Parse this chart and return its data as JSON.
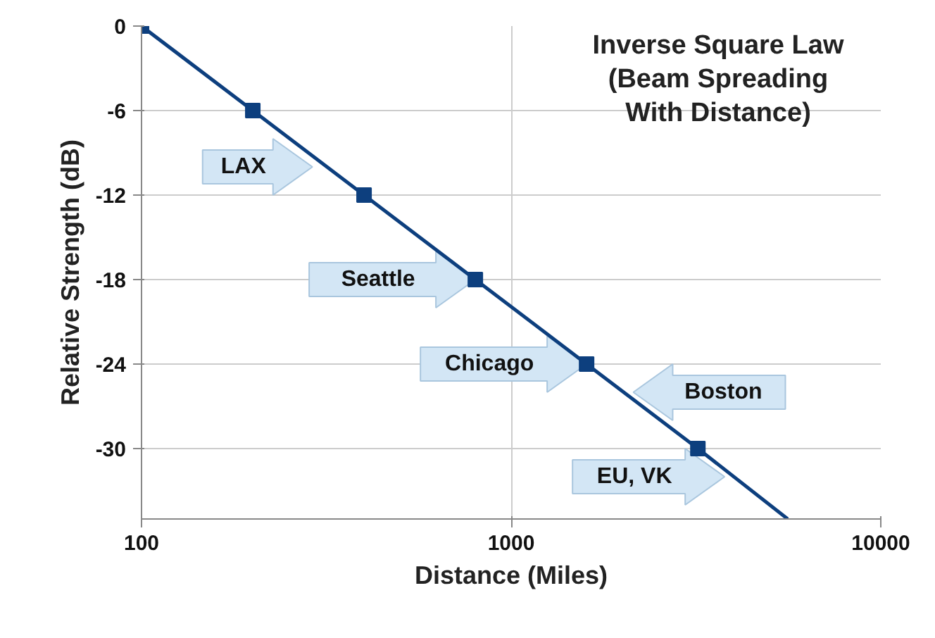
{
  "chart_data": {
    "type": "line",
    "title": "Inverse Square Law\n(Beam Spreading\nWith Distance)",
    "xlabel": "Distance (Miles)",
    "ylabel": "Relative Strength (dB)",
    "log": "x",
    "xlim": [
      100,
      10000
    ],
    "xticks": [
      100,
      1000,
      10000
    ],
    "ylim": [
      -35,
      0
    ],
    "yticks": [
      0,
      -6,
      -12,
      -18,
      -24,
      -30
    ],
    "grid": true,
    "series": [
      {
        "color": "#0d3f7e",
        "x": [
          100,
          200,
          400,
          800,
          1600,
          3200,
          5600
        ],
        "values": [
          0,
          -6,
          -12,
          -18,
          -24,
          -30,
          -35
        ]
      },
      {
        "type": "scatter",
        "color": "#0d3f7e",
        "marker": "square",
        "x": [
          100,
          200,
          400,
          800,
          1600,
          3200
        ],
        "values": [
          0,
          -6,
          -12,
          -18,
          -24,
          -30
        ]
      }
    ],
    "annotations": [
      {
        "text": "LAX",
        "x": 290,
        "y": -10
      },
      {
        "text": "Seattle",
        "x": 800,
        "y": -18
      },
      {
        "text": "Chicago",
        "x": 1600,
        "y": -24
      },
      {
        "text": "Boston",
        "x": 2140,
        "y": -26
      },
      {
        "text": "EU, VK",
        "x": 3780,
        "y": -32
      }
    ]
  }
}
